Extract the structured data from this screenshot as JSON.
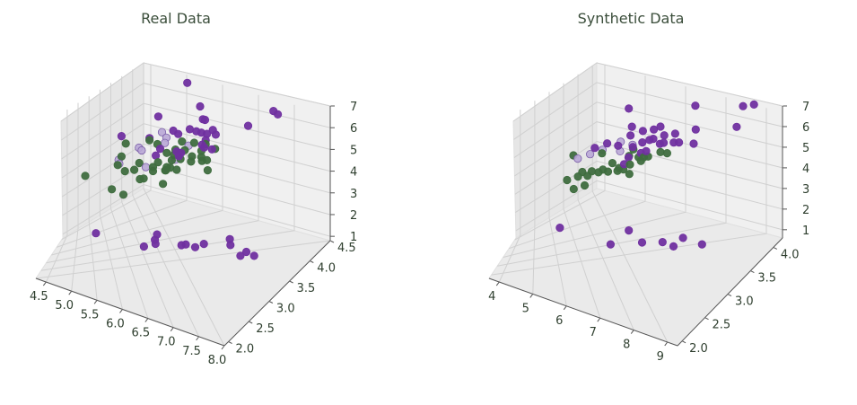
{
  "chart_data": [
    {
      "type": "scatter",
      "projection": "3d",
      "title": "Real Data",
      "xlabel": "",
      "ylabel": "",
      "zlabel": "",
      "xlim": [
        4.3,
        8.0
      ],
      "ylim": [
        1.9,
        4.5
      ],
      "zlim": [
        0.8,
        7.0
      ],
      "x_ticks": [
        "4.5",
        "5.0",
        "5.5",
        "6.0",
        "6.5",
        "7.0",
        "7.5",
        "8.0"
      ],
      "y_ticks": [
        "2.0",
        "2.5",
        "3.0",
        "3.5",
        "4.0",
        "4.5"
      ],
      "z_ticks": [
        "1",
        "2",
        "3",
        "4",
        "5",
        "6",
        "7"
      ],
      "grid": true,
      "colors": {
        "purple": "#7030a0",
        "green": "#3f6d3f",
        "lavender": "#b9a7d6"
      },
      "series": [
        {
          "color": "purple",
          "points": [
            [
              4.4,
              3.0,
              1.4
            ],
            [
              4.6,
              3.1,
              1.5
            ],
            [
              4.8,
              3.4,
              1.6
            ],
            [
              4.9,
              3.0,
              1.4
            ],
            [
              5.0,
              3.4,
              1.5
            ],
            [
              5.1,
              3.5,
              1.4
            ],
            [
              5.4,
              3.9,
              1.7
            ],
            [
              5.7,
              3.8,
              1.7
            ],
            [
              5.8,
              4.0,
              1.2
            ],
            [
              5.5,
              4.2,
              1.4
            ],
            [
              5.2,
              4.1,
              1.5
            ],
            [
              6.3,
              3.3,
              6.0
            ],
            [
              6.5,
              3.0,
              5.8
            ],
            [
              6.7,
              3.3,
              5.7
            ],
            [
              6.9,
              3.2,
              5.7
            ],
            [
              7.2,
              3.6,
              6.1
            ],
            [
              7.7,
              3.8,
              6.7
            ],
            [
              7.7,
              2.6,
              6.9
            ],
            [
              7.9,
              3.8,
              6.4
            ],
            [
              6.4,
              3.2,
              5.3
            ],
            [
              6.8,
              3.0,
              5.5
            ],
            [
              7.1,
              3.0,
              5.9
            ],
            [
              6.5,
              3.2,
              5.1
            ],
            [
              6.0,
              3.0,
              4.8
            ],
            [
              6.3,
              2.9,
              5.6
            ],
            [
              5.8,
              2.8,
              5.1
            ],
            [
              6.2,
              3.4,
              5.4
            ],
            [
              6.9,
              3.1,
              5.1
            ],
            [
              6.7,
              3.1,
              5.6
            ],
            [
              7.3,
              2.9,
              6.3
            ],
            [
              6.1,
              3.0,
              4.9
            ],
            [
              6.4,
              2.8,
              5.6
            ],
            [
              7.2,
              3.0,
              5.8
            ],
            [
              6.0,
              2.2,
              5.0
            ],
            [
              5.6,
              2.8,
              4.9
            ],
            [
              6.3,
              2.5,
              5.0
            ],
            [
              5.9,
              3.0,
              5.1
            ],
            [
              6.7,
              2.5,
              5.8
            ],
            [
              4.5,
              2.3,
              1.3
            ],
            [
              5.0,
              3.0,
              1.6
            ],
            [
              5.5,
              3.5,
              1.3
            ]
          ]
        },
        {
          "color": "green",
          "points": [
            [
              7.0,
              3.2,
              4.7
            ],
            [
              6.4,
              3.2,
              4.5
            ],
            [
              6.9,
              3.1,
              4.9
            ],
            [
              5.5,
              2.3,
              4.0
            ],
            [
              6.5,
              2.8,
              4.6
            ],
            [
              5.7,
              2.8,
              4.5
            ],
            [
              6.3,
              3.3,
              4.7
            ],
            [
              4.9,
              2.4,
              3.3
            ],
            [
              6.6,
              2.9,
              4.6
            ],
            [
              5.2,
              2.7,
              3.9
            ],
            [
              5.0,
              2.0,
              3.5
            ],
            [
              5.9,
              3.0,
              4.2
            ],
            [
              6.0,
              2.2,
              4.0
            ],
            [
              6.1,
              2.9,
              4.7
            ],
            [
              5.6,
              2.9,
              3.6
            ],
            [
              6.7,
              3.1,
              4.4
            ],
            [
              5.6,
              3.0,
              4.5
            ],
            [
              5.8,
              2.7,
              4.1
            ],
            [
              6.2,
              2.2,
              4.5
            ],
            [
              5.6,
              2.5,
              3.9
            ],
            [
              5.9,
              3.2,
              4.8
            ],
            [
              6.1,
              2.8,
              4.0
            ],
            [
              6.3,
              2.5,
              4.9
            ],
            [
              6.1,
              2.8,
              4.7
            ],
            [
              6.4,
              2.9,
              4.3
            ],
            [
              6.6,
              3.0,
              4.4
            ],
            [
              6.8,
              2.8,
              4.8
            ],
            [
              6.7,
              3.0,
              5.0
            ],
            [
              6.0,
              2.9,
              4.5
            ],
            [
              5.7,
              2.6,
              3.5
            ],
            [
              5.5,
              2.4,
              3.8
            ],
            [
              5.8,
              2.7,
              3.9
            ],
            [
              6.0,
              2.7,
              5.1
            ],
            [
              5.4,
              3.0,
              4.5
            ],
            [
              6.0,
              3.4,
              4.5
            ],
            [
              6.7,
              3.1,
              4.7
            ],
            [
              5.5,
              2.6,
              4.4
            ],
            [
              5.1,
              2.5,
              3.0
            ],
            [
              5.7,
              2.9,
              4.2
            ]
          ]
        },
        {
          "color": "lavender",
          "points": [
            [
              5.8,
              2.6,
              4.0
            ],
            [
              6.5,
              2.8,
              4.1
            ],
            [
              7.0,
              2.5,
              4.3
            ],
            [
              7.2,
              2.4,
              4.6
            ],
            [
              6.8,
              2.2,
              3.9
            ],
            [
              7.4,
              2.4,
              4.2
            ],
            [
              6.2,
              2.1,
              3.6
            ],
            [
              5.9,
              2.2,
              3.7
            ],
            [
              6.6,
              2.3,
              4.0
            ],
            [
              7.1,
              2.8,
              4.4
            ]
          ]
        }
      ]
    },
    {
      "type": "scatter",
      "projection": "3d",
      "title": "Synthetic Data",
      "xlabel": "",
      "ylabel": "",
      "zlabel": "",
      "xlim": [
        3.7,
        9.3
      ],
      "ylim": [
        1.9,
        4.2
      ],
      "zlim": [
        0.6,
        7.0
      ],
      "x_ticks": [
        "4",
        "5",
        "6",
        "7",
        "8",
        "9"
      ],
      "y_ticks": [
        "2.0",
        "2.5",
        "3.0",
        "3.5",
        "4.0"
      ],
      "z_ticks": [
        "1",
        "2",
        "3",
        "4",
        "5",
        "6",
        "7"
      ],
      "grid": true,
      "colors": {
        "purple": "#7030a0",
        "green": "#3f6d3f",
        "lavender": "#b9a7d6"
      },
      "series": [
        {
          "color": "purple",
          "points": [
            [
              4.1,
              3.0,
              1.3
            ],
            [
              4.6,
              3.3,
              1.5
            ],
            [
              4.9,
              3.5,
              1.6
            ],
            [
              5.2,
              3.7,
              1.9
            ],
            [
              5.4,
              3.9,
              1.7
            ],
            [
              5.1,
              3.6,
              1.4
            ],
            [
              4.8,
              3.1,
              1.8
            ],
            [
              6.5,
              3.1,
              5.7
            ],
            [
              6.7,
              3.2,
              5.9
            ],
            [
              6.9,
              3.3,
              6.0
            ],
            [
              6.3,
              3.0,
              5.5
            ],
            [
              6.6,
              3.4,
              5.8
            ],
            [
              7.0,
              3.1,
              6.1
            ],
            [
              6.2,
              2.9,
              5.2
            ],
            [
              6.4,
              3.2,
              5.6
            ],
            [
              6.8,
              3.0,
              5.4
            ],
            [
              6.1,
              3.3,
              5.9
            ],
            [
              6.0,
              3.1,
              5.3
            ],
            [
              7.2,
              3.5,
              6.3
            ],
            [
              7.8,
              3.9,
              6.6
            ],
            [
              8.3,
              3.3,
              6.8
            ],
            [
              8.8,
              3.8,
              7.1
            ],
            [
              9.0,
              3.9,
              7.2
            ],
            [
              7.6,
              2.6,
              6.2
            ],
            [
              6.6,
              2.8,
              5.5
            ],
            [
              6.3,
              2.7,
              5.0
            ],
            [
              6.9,
              2.9,
              5.7
            ],
            [
              5.8,
              2.5,
              4.9
            ],
            [
              6.1,
              2.6,
              5.1
            ],
            [
              7.1,
              3.0,
              5.8
            ],
            [
              6.5,
              3.6,
              6.0
            ],
            [
              6.8,
              3.3,
              5.6
            ],
            [
              5.9,
              2.9,
              4.8
            ],
            [
              6.2,
              3.0,
              5.0
            ],
            [
              6.7,
              2.8,
              5.9
            ],
            [
              4.5,
              2.3,
              1.2
            ],
            [
              5.6,
              2.9,
              4.6
            ]
          ]
        },
        {
          "color": "green",
          "points": [
            [
              5.0,
              2.3,
              3.4
            ],
            [
              5.3,
              2.5,
              3.7
            ],
            [
              5.6,
              2.7,
              4.0
            ],
            [
              5.8,
              2.8,
              4.2
            ],
            [
              6.0,
              2.9,
              4.4
            ],
            [
              6.2,
              3.0,
              4.6
            ],
            [
              5.5,
              2.6,
              3.9
            ],
            [
              5.9,
              2.7,
              4.3
            ],
            [
              6.4,
              3.0,
              4.7
            ],
            [
              6.6,
              2.9,
              4.5
            ],
            [
              7.0,
              3.1,
              4.8
            ],
            [
              6.9,
              3.2,
              4.9
            ],
            [
              5.2,
              2.4,
              3.6
            ],
            [
              5.7,
              2.8,
              4.1
            ],
            [
              6.1,
              2.8,
              4.0
            ],
            [
              6.3,
              2.5,
              4.4
            ],
            [
              5.4,
              3.0,
              4.3
            ],
            [
              4.9,
              2.4,
              3.1
            ],
            [
              5.1,
              2.5,
              3.3
            ],
            [
              6.7,
              3.0,
              4.6
            ],
            [
              5.6,
              2.5,
              3.8
            ],
            [
              6.0,
              2.2,
              4.1
            ],
            [
              5.8,
              2.6,
              3.9
            ],
            [
              6.5,
              2.8,
              4.5
            ],
            [
              6.8,
              2.8,
              4.7
            ],
            [
              5.5,
              2.4,
              3.7
            ]
          ]
        },
        {
          "color": "lavender",
          "points": [
            [
              6.9,
              2.4,
              4.2
            ],
            [
              7.3,
              2.7,
              4.6
            ],
            [
              7.6,
              2.5,
              4.4
            ],
            [
              6.6,
              2.3,
              4.0
            ],
            [
              7.0,
              2.6,
              4.3
            ],
            [
              6.3,
              2.2,
              3.8
            ]
          ]
        }
      ]
    }
  ]
}
